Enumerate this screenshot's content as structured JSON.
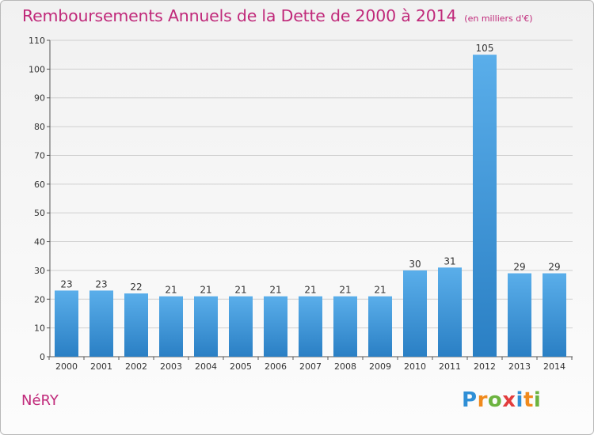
{
  "header": {
    "title": "Remboursements Annuels de la Dette de 2000 à 2014",
    "unit": "(en milliers d'€)"
  },
  "footer": {
    "commune": "NéRY",
    "logo_letters": [
      {
        "ch": "P",
        "color": "#2f8fd6"
      },
      {
        "ch": "r",
        "color": "#f08a1d"
      },
      {
        "ch": "o",
        "color": "#6cb33f"
      },
      {
        "ch": "x",
        "color": "#e23d3d"
      },
      {
        "ch": "i",
        "color": "#2f8fd6"
      },
      {
        "ch": "t",
        "color": "#f08a1d"
      },
      {
        "ch": "i",
        "color": "#6cb33f"
      }
    ]
  },
  "colors": {
    "bar_light": "#5aaeea",
    "bar_dark": "#2a7fc4",
    "title": "#c0297a",
    "grid": "#cfcfcf"
  },
  "chart_data": {
    "type": "bar",
    "categories": [
      "2000",
      "2001",
      "2002",
      "2003",
      "2004",
      "2005",
      "2006",
      "2007",
      "2008",
      "2009",
      "2010",
      "2011",
      "2012",
      "2013",
      "2014"
    ],
    "values": [
      23,
      23,
      22,
      21,
      21,
      21,
      21,
      21,
      21,
      21,
      30,
      31,
      105,
      29,
      29
    ],
    "data_labels": [
      "23",
      "23",
      "22",
      "21",
      "21",
      "21",
      "21",
      "21",
      "21",
      "21",
      "30",
      "31",
      "105",
      "29",
      "29"
    ],
    "y_ticks": [
      0,
      10,
      20,
      30,
      40,
      50,
      60,
      70,
      80,
      90,
      100,
      110
    ],
    "ylim": [
      0,
      110
    ],
    "grid": true
  }
}
